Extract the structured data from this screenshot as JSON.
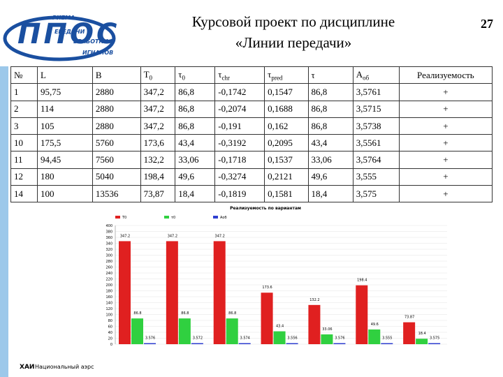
{
  "header": {
    "title_lines": [
      "Курсовой проект по дисциплине",
      "«Линии передачи»"
    ],
    "page_number": "27",
    "logo": {
      "letters": "ППОС",
      "words": [
        "РИЕМА",
        "ЕРЕДАЧИ",
        "БРАБОТКИ",
        "ИГНАЛОВ"
      ]
    }
  },
  "footer": {
    "text": "Национальный аэрс",
    "mark": "ХАИ"
  },
  "table": {
    "columns": [
      {
        "text": "№"
      },
      {
        "text": "L"
      },
      {
        "text": "B"
      },
      {
        "text": "T",
        "sub": "0"
      },
      {
        "text": "τ",
        "sub": "0"
      },
      {
        "text": "τ",
        "sub": "chr"
      },
      {
        "text": "τ",
        "sub": "pred"
      },
      {
        "text": "τ"
      },
      {
        "text": "A",
        "sub": "об"
      },
      {
        "text": "Реализуемость"
      }
    ],
    "rows": [
      [
        "1",
        "95,75",
        "2880",
        "347,2",
        "86,8",
        "-0,1742",
        "0,1547",
        "86,8",
        "3,5761",
        "+"
      ],
      [
        "2",
        "114",
        "2880",
        "347,2",
        "86,8",
        "-0,2074",
        "0,1688",
        "86,8",
        "3,5715",
        "+"
      ],
      [
        "3",
        "105",
        "2880",
        "347,2",
        "86,8",
        "-0,191",
        "0,162",
        "86,8",
        "3,5738",
        "+"
      ],
      [
        "10",
        "175,5",
        "5760",
        "173,6",
        "43,4",
        "-0,3192",
        "0,2095",
        "43,4",
        "3,5561",
        "+"
      ],
      [
        "11",
        "94,45",
        "7560",
        "132,2",
        "33,06",
        "-0,1718",
        "0,1537",
        "33,06",
        "3,5764",
        "+"
      ],
      [
        "12",
        "180",
        "5040",
        "198,4",
        "49,6",
        "-0,3274",
        "0,2121",
        "49,6",
        "3,555",
        "+"
      ],
      [
        "14",
        "100",
        "13536",
        "73,87",
        "18,4",
        "-0,1819",
        "0,1581",
        "18,4",
        "3,575",
        "+"
      ]
    ]
  },
  "chart_data": {
    "type": "bar",
    "title": "Реализуемость по вариантам",
    "categories": [
      null,
      null,
      null,
      null,
      null,
      null,
      null
    ],
    "series": [
      {
        "name": "T0",
        "color": "#e02020",
        "values": [
          347.2,
          347.2,
          347.2,
          173.6,
          132.2,
          198.4,
          73.87
        ]
      },
      {
        "name": "τ0",
        "color": "#30d040",
        "values": [
          86.8,
          86.8,
          86.8,
          43.4,
          33.06,
          49.6,
          18.4
        ]
      },
      {
        "name": "Aоб",
        "color": "#3040d0",
        "values": [
          3.576,
          3.572,
          3.574,
          3.556,
          3.576,
          3.555,
          3.575
        ]
      }
    ],
    "ylim": [
      0,
      400
    ],
    "yticks": [
      0,
      20,
      40,
      60,
      80,
      100,
      120,
      140,
      160,
      180,
      200,
      220,
      240,
      260,
      280,
      300,
      320,
      340,
      360,
      380,
      400
    ],
    "grid": true,
    "legend": "top"
  }
}
